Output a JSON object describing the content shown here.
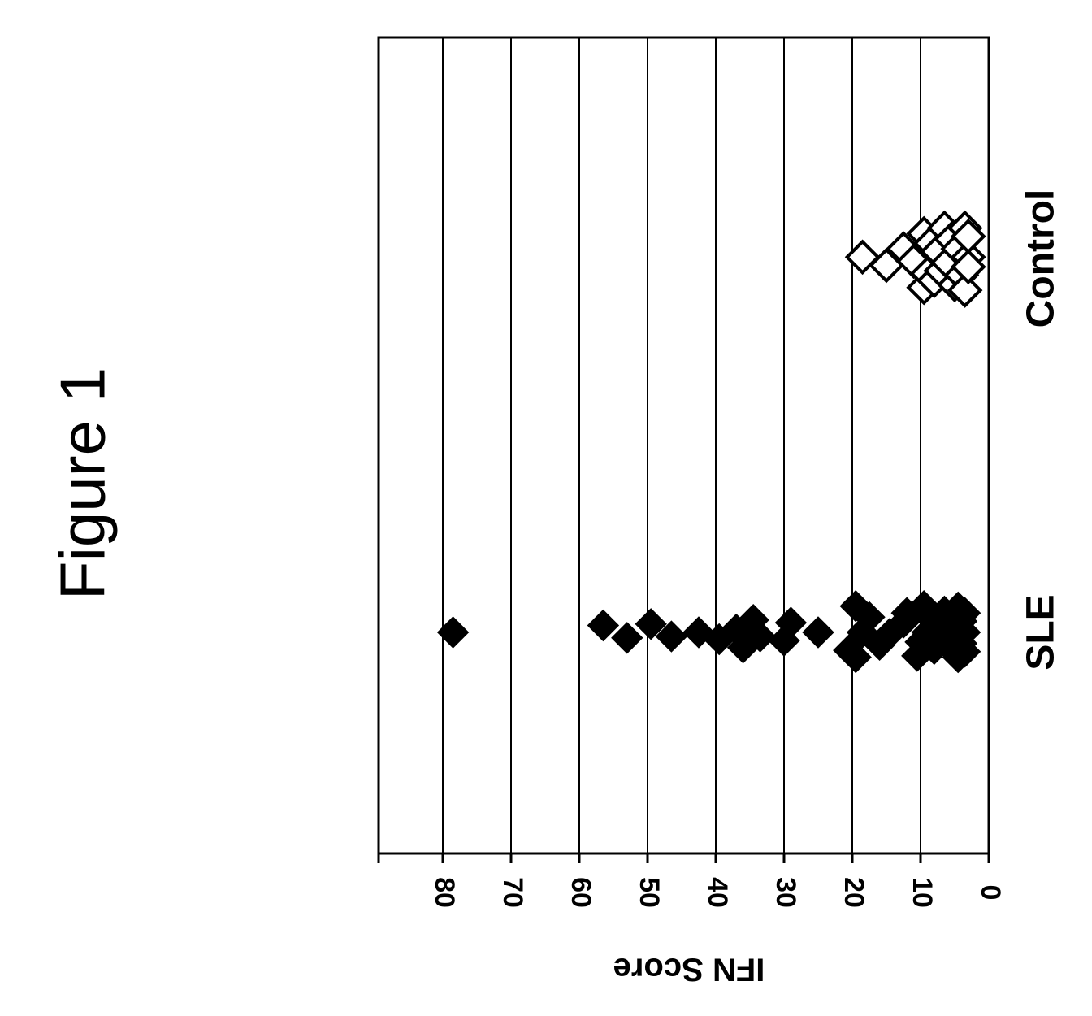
{
  "figure_title": "Figure 1",
  "chart_data": {
    "type": "scatter",
    "ylabel": "IFN Score",
    "ylim": [
      0,
      88
    ],
    "yticks": [
      0,
      10,
      20,
      30,
      40,
      50,
      60,
      70,
      80
    ],
    "grid": true,
    "categories": [
      "SLE",
      "Control"
    ],
    "series": [
      {
        "category": "SLE",
        "marker": "filled-diamond",
        "points": [
          {
            "y": 78.5,
            "offset": 0.0
          },
          {
            "y": 56.5,
            "offset": -0.25
          },
          {
            "y": 53,
            "offset": 0.2
          },
          {
            "y": 49.5,
            "offset": -0.3
          },
          {
            "y": 46.5,
            "offset": 0.15
          },
          {
            "y": 42.5,
            "offset": 0.0
          },
          {
            "y": 39.5,
            "offset": 0.25
          },
          {
            "y": 37,
            "offset": -0.1
          },
          {
            "y": 36,
            "offset": 0.55
          },
          {
            "y": 34.5,
            "offset": -0.45
          },
          {
            "y": 33.5,
            "offset": 0.15
          },
          {
            "y": 30,
            "offset": 0.3
          },
          {
            "y": 29,
            "offset": -0.35
          },
          {
            "y": 25,
            "offset": 0.0
          },
          {
            "y": 20.5,
            "offset": 0.65
          },
          {
            "y": 19.5,
            "offset": 0.9
          },
          {
            "y": 19.5,
            "offset": -0.95
          },
          {
            "y": 18.5,
            "offset": 0.0
          },
          {
            "y": 17.5,
            "offset": -0.55
          },
          {
            "y": 16,
            "offset": 0.45
          },
          {
            "y": 14.5,
            "offset": 0.05
          },
          {
            "y": 12.5,
            "offset": -0.35
          },
          {
            "y": 12,
            "offset": -0.7
          },
          {
            "y": 10.5,
            "offset": 0.85
          },
          {
            "y": 10,
            "offset": 0.35
          },
          {
            "y": 9.5,
            "offset": -0.95
          },
          {
            "y": 9,
            "offset": 0.0
          },
          {
            "y": 8.5,
            "offset": -0.5
          },
          {
            "y": 8,
            "offset": 0.6
          },
          {
            "y": 7.5,
            "offset": -0.2
          },
          {
            "y": 7,
            "offset": 0.2
          },
          {
            "y": 6.5,
            "offset": -0.75
          },
          {
            "y": 6,
            "offset": 0.45
          },
          {
            "y": 5.5,
            "offset": -0.35
          },
          {
            "y": 5,
            "offset": 0.15
          },
          {
            "y": 4.5,
            "offset": -0.9
          },
          {
            "y": 4.5,
            "offset": 0.9
          },
          {
            "y": 4,
            "offset": -0.4
          },
          {
            "y": 4,
            "offset": 0.4
          },
          {
            "y": 3.5,
            "offset": 0.0
          },
          {
            "y": 3.5,
            "offset": -0.7
          },
          {
            "y": 3.5,
            "offset": 0.7
          }
        ]
      },
      {
        "category": "Control",
        "marker": "open-diamond",
        "points": [
          {
            "y": 18.5,
            "offset": -0.05
          },
          {
            "y": 15,
            "offset": 0.25
          },
          {
            "y": 12.5,
            "offset": -0.35
          },
          {
            "y": 11,
            "offset": 0.1
          },
          {
            "y": 9.5,
            "offset": 1.05
          },
          {
            "y": 9.5,
            "offset": -0.9
          },
          {
            "y": 9,
            "offset": 0.55
          },
          {
            "y": 8.5,
            "offset": -0.55
          },
          {
            "y": 8,
            "offset": 0.8
          },
          {
            "y": 7.5,
            "offset": -0.25
          },
          {
            "y": 7,
            "offset": 0.45
          },
          {
            "y": 6.5,
            "offset": -1.1
          },
          {
            "y": 6,
            "offset": 0.15
          },
          {
            "y": 5.5,
            "offset": -0.7
          },
          {
            "y": 5,
            "offset": 0.95
          },
          {
            "y": 4.5,
            "offset": -0.35
          },
          {
            "y": 4,
            "offset": 0.6
          },
          {
            "y": 3.5,
            "offset": -1.1
          },
          {
            "y": 3.5,
            "offset": 1.15
          },
          {
            "y": 3,
            "offset": -0.05
          },
          {
            "y": 3,
            "offset": -0.8
          },
          {
            "y": 3,
            "offset": 0.3
          }
        ]
      }
    ]
  }
}
